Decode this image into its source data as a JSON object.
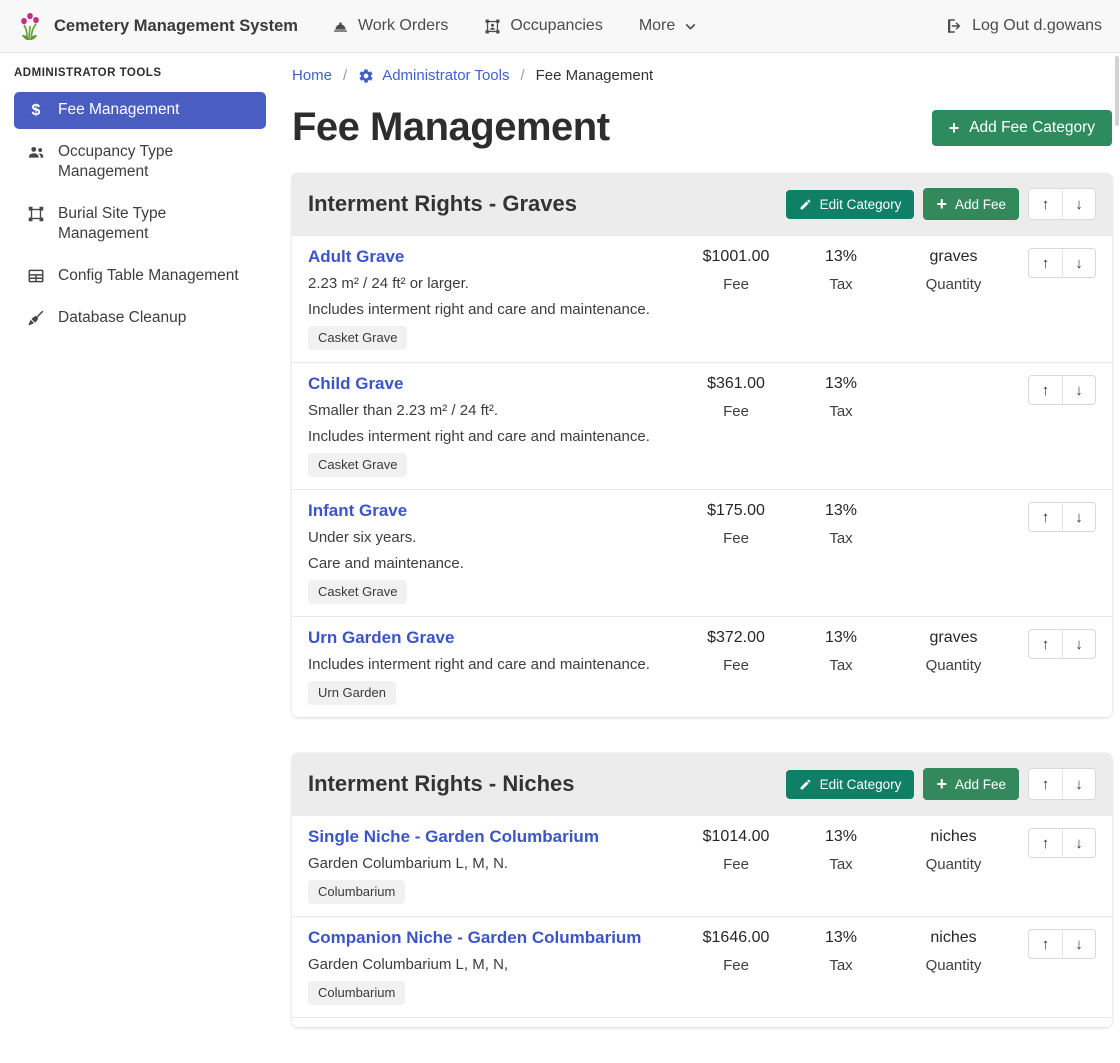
{
  "colors": {
    "accent_blue": "#4a5dc0",
    "link_blue": "#3b55c9",
    "button_green": "#2e8b5e",
    "button_teal": "#0f7f66",
    "category_header_gray": "#ececec"
  },
  "icons": {
    "plus": "+",
    "up_arrow": "↑",
    "down_arrow": "↓"
  },
  "navbar": {
    "brand": "Cemetery Management System",
    "items": [
      {
        "label": "Work Orders",
        "icon": "hard-hat-icon"
      },
      {
        "label": "Occupancies",
        "icon": "occupancy-frame-icon"
      },
      {
        "label": "More",
        "trailing_icon": "chevron-down-icon"
      }
    ],
    "logout_label": "Log Out d.gowans"
  },
  "sidebar": {
    "header": "ADMINISTRATOR TOOLS",
    "items": [
      {
        "label": "Fee Management",
        "icon": "dollar-icon",
        "active": true
      },
      {
        "label": "Occupancy Type Management",
        "icon": "users-icon",
        "active": false
      },
      {
        "label": "Burial Site Type Management",
        "icon": "vector-square-icon",
        "active": false
      },
      {
        "label": "Config Table Management",
        "icon": "table-icon",
        "active": false
      },
      {
        "label": "Database Cleanup",
        "icon": "broom-icon",
        "active": false
      }
    ]
  },
  "breadcrumb": {
    "home": "Home",
    "separator": "/",
    "admin": "Administrator Tools",
    "current": "Fee Management"
  },
  "page": {
    "title": "Fee Management",
    "add_category_label": "Add Fee Category"
  },
  "category_actions": {
    "edit_label": "Edit Category",
    "add_fee_label": "Add Fee"
  },
  "labels": {
    "fee": "Fee",
    "tax": "Tax",
    "quantity": "Quantity"
  },
  "categories": [
    {
      "title": "Interment Rights - Graves",
      "truncated": false,
      "fees": [
        {
          "name": "Adult Grave",
          "descriptions": [
            "2.23 m² / 24 ft² or larger.",
            "Includes interment right and care and maintenance."
          ],
          "badge": "Casket Grave",
          "fee": "$1001.00",
          "tax": "13%",
          "quantity": "graves"
        },
        {
          "name": "Child Grave",
          "descriptions": [
            "Smaller than 2.23 m² / 24 ft².",
            "Includes interment right and care and maintenance."
          ],
          "badge": "Casket Grave",
          "fee": "$361.00",
          "tax": "13%",
          "quantity": ""
        },
        {
          "name": "Infant Grave",
          "descriptions": [
            "Under six years.",
            "Care and maintenance."
          ],
          "badge": "Casket Grave",
          "fee": "$175.00",
          "tax": "13%",
          "quantity": ""
        },
        {
          "name": "Urn Garden Grave",
          "descriptions": [
            "Includes interment right and care and maintenance."
          ],
          "badge": "Urn Garden",
          "fee": "$372.00",
          "tax": "13%",
          "quantity": "graves"
        }
      ]
    },
    {
      "title": "Interment Rights - Niches",
      "truncated": true,
      "fees": [
        {
          "name": "Single Niche - Garden Columbarium",
          "descriptions": [
            "Garden Columbarium L, M, N."
          ],
          "badge": "Columbarium",
          "fee": "$1014.00",
          "tax": "13%",
          "quantity": "niches"
        },
        {
          "name": "Companion Niche - Garden Columbarium",
          "descriptions": [
            "Garden Columbarium L, M, N,"
          ],
          "badge": "Columbarium",
          "fee": "$1646.00",
          "tax": "13%",
          "quantity": "niches"
        }
      ]
    }
  ]
}
